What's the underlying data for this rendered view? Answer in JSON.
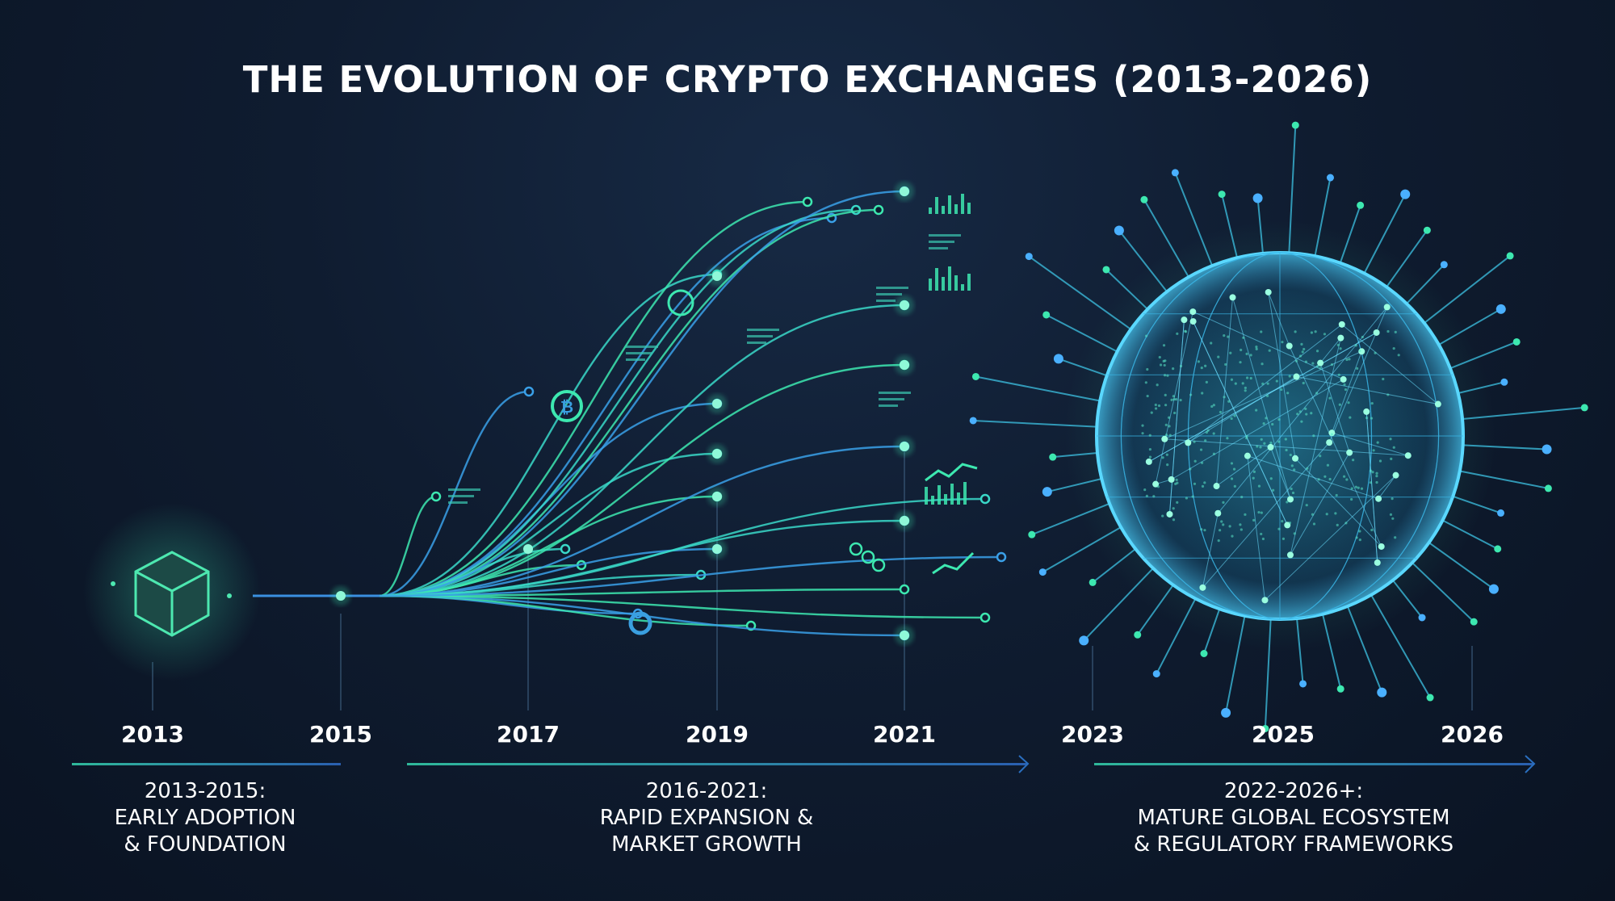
{
  "title": "THE EVOLUTION OF CRYPTO EXCHANGES (2013-2026)",
  "years": [
    "2013",
    "2015",
    "2017",
    "2019",
    "2021",
    "2023",
    "2025",
    "2026"
  ],
  "phases": [
    {
      "range": "2013-2015:",
      "line1": "EARLY ADOPTION",
      "line2": "& FOUNDATION"
    },
    {
      "range": "2016-2021:",
      "line1": "RAPID EXPANSION &",
      "line2": "MARKET GROWTH"
    },
    {
      "range": "2022-2026+:",
      "line1": "MATURE GLOBAL ECOSYSTEM",
      "line2": "& REGULATORY FRAMEWORKS"
    }
  ],
  "icons": [
    "cube-icon",
    "bitcoin-icon",
    "speedometer-icon",
    "bar-chart-icon",
    "line-chart-icon",
    "globe-icon",
    "nodes-icon",
    "donut-icon"
  ],
  "colors": {
    "background": "#0f1c30",
    "accent_green": "#3de8b0",
    "accent_blue": "#3a8fe0",
    "text": "#ffffff"
  }
}
